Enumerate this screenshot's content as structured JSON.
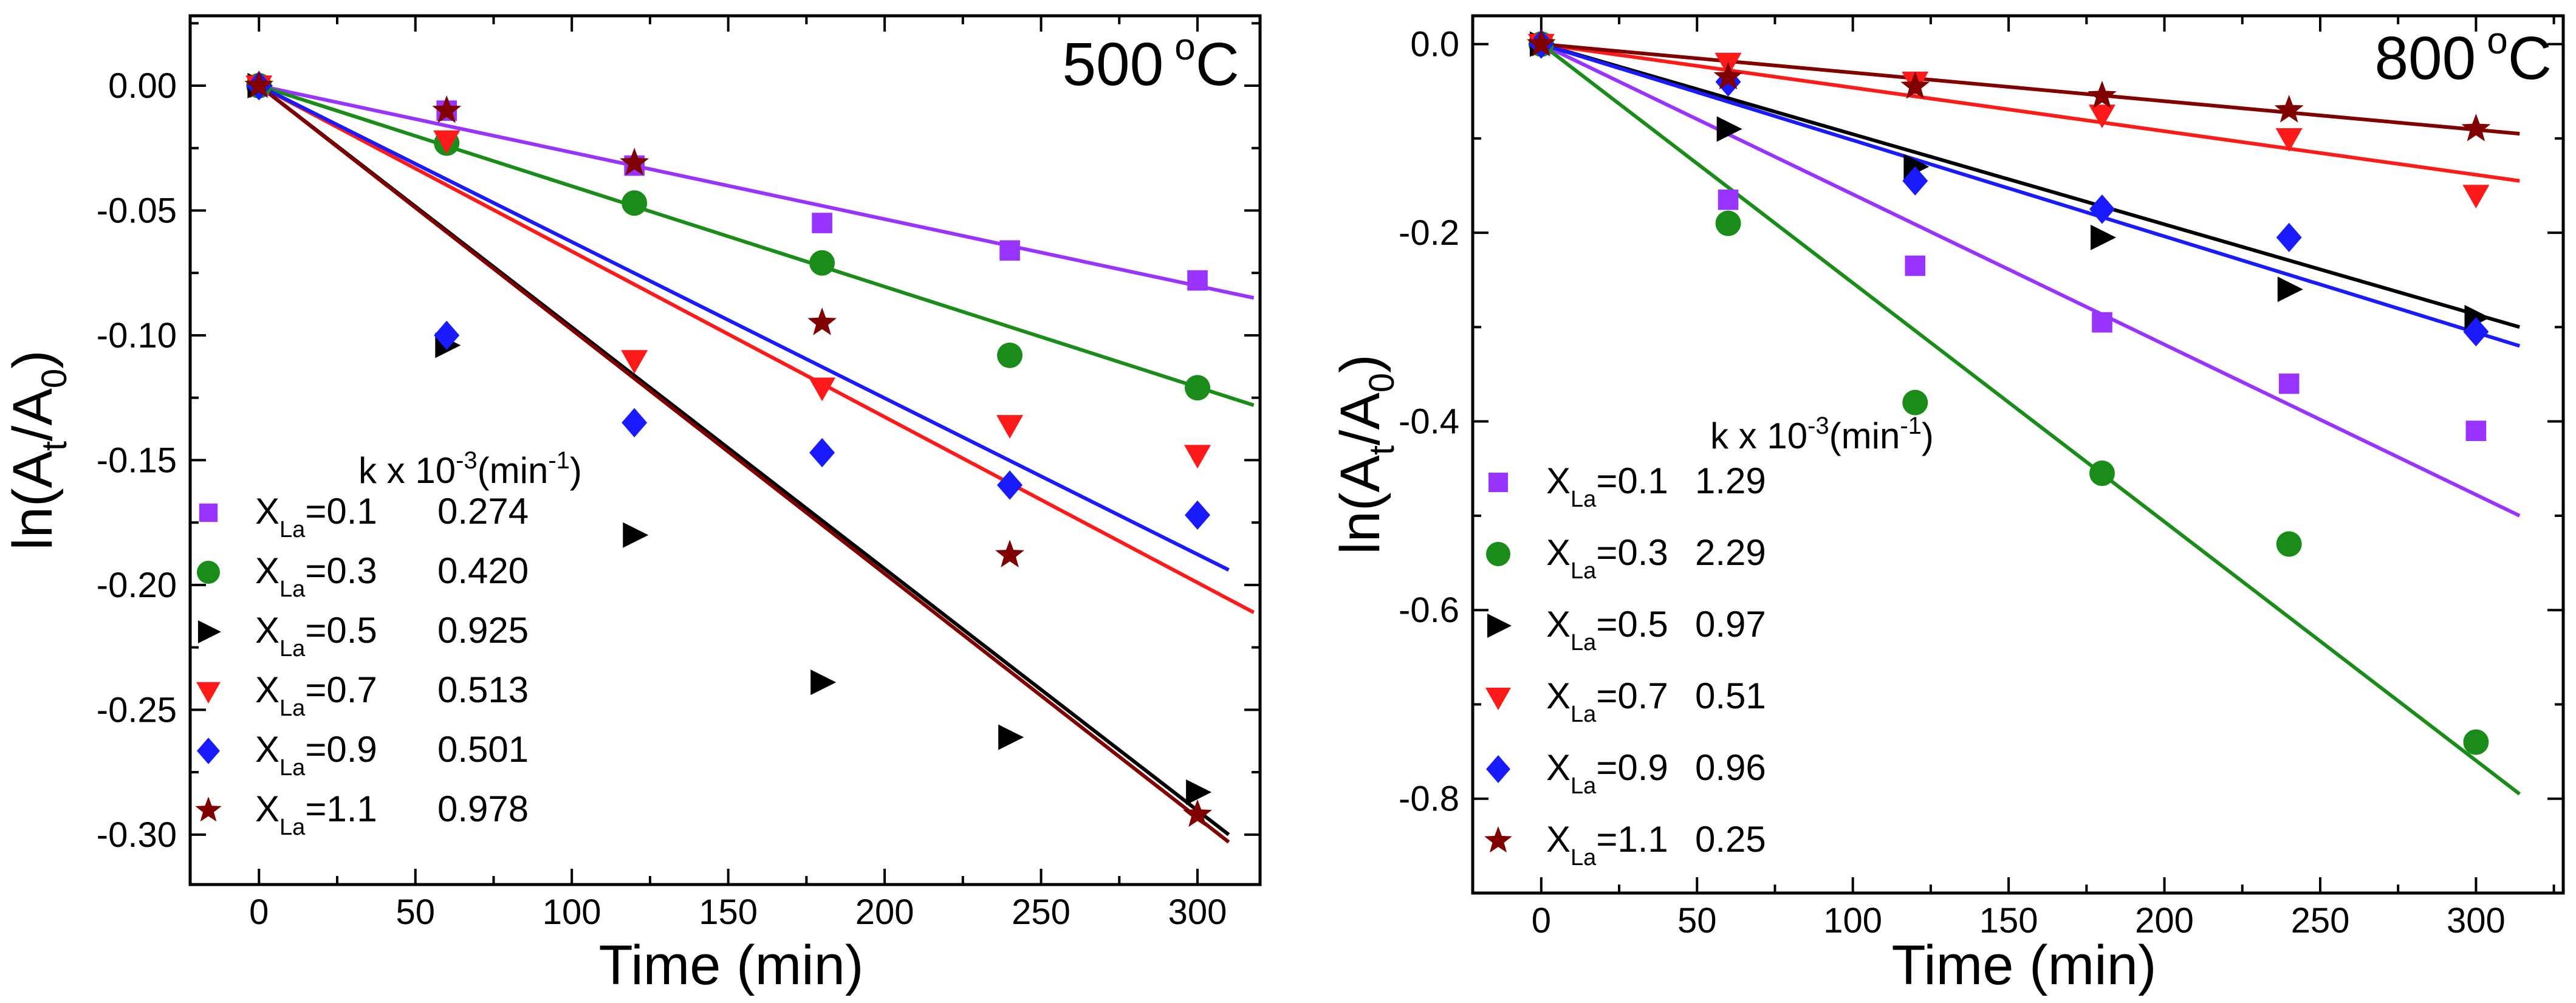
{
  "colors": {
    "purple": "#9933ff",
    "green": "#1a8c1a",
    "black": "#000000",
    "red": "#ff1a1a",
    "blue": "#1a1aff",
    "maroon": "#800000"
  },
  "chart_data": [
    {
      "type": "scatter",
      "panel": "left",
      "temperature_label": "500 °C",
      "temp_value": "500",
      "temp_unit": "C",
      "xlabel": "Time  (min)",
      "ylabel": "ln(At/A0)",
      "xlim": [
        -22,
        320
      ],
      "ylim": [
        -0.32,
        0.028
      ],
      "xticks": [
        "0",
        "50",
        "100",
        "150",
        "200",
        "250",
        "300"
      ],
      "yticks": [
        "0.00",
        "-0.05",
        "-0.10",
        "-0.15",
        "-0.20",
        "-0.25",
        "-0.30"
      ],
      "legend_header": "k x 10-3(min-1)",
      "x": [
        0,
        60,
        120,
        180,
        240,
        300
      ],
      "series": [
        {
          "name": "XLa=0.1",
          "label_main": "X",
          "label_sub": "La",
          "label_value": "=0.1",
          "k": "0.274",
          "color_key": "purple",
          "marker": "square",
          "values": [
            0,
            -0.01,
            -0.032,
            -0.055,
            -0.066,
            -0.078
          ],
          "fit": [
            [
              0,
              0
            ],
            [
              318,
              -0.085
            ]
          ]
        },
        {
          "name": "XLa=0.3",
          "label_main": "X",
          "label_sub": "La",
          "label_value": "=0.3",
          "k": "0.420",
          "color_key": "green",
          "marker": "circle",
          "values": [
            0,
            -0.023,
            -0.047,
            -0.071,
            -0.108,
            -0.121
          ],
          "fit": [
            [
              0,
              0
            ],
            [
              318,
              -0.128
            ]
          ]
        },
        {
          "name": "XLa=0.5",
          "label_main": "X",
          "label_sub": "La",
          "label_value": "=0.5",
          "k": "0.925",
          "color_key": "black",
          "marker": "triangle-right",
          "values": [
            0,
            -0.104,
            -0.18,
            -0.239,
            -0.261,
            -0.283
          ],
          "fit": [
            [
              0,
              0
            ],
            [
              310,
              -0.3
            ]
          ]
        },
        {
          "name": "XLa=0.7",
          "label_main": "X",
          "label_sub": "La",
          "label_value": "=0.7",
          "k": "0.513",
          "color_key": "red",
          "marker": "triangle-down",
          "values": [
            0,
            -0.022,
            -0.11,
            -0.121,
            -0.136,
            -0.148
          ],
          "fit": [
            [
              0,
              0
            ],
            [
              318,
              -0.211
            ]
          ]
        },
        {
          "name": "XLa=0.9",
          "label_main": "X",
          "label_sub": "La",
          "label_value": "=0.9",
          "k": "0.501",
          "color_key": "blue",
          "marker": "diamond",
          "values": [
            0,
            -0.1,
            -0.135,
            -0.147,
            -0.16,
            -0.172
          ],
          "fit": [
            [
              0,
              0
            ],
            [
              310,
              -0.194
            ]
          ]
        },
        {
          "name": "XLa=1.1",
          "label_main": "X",
          "label_sub": "La",
          "label_value": "=1.1",
          "k": "0.978",
          "color_key": "maroon",
          "marker": "star",
          "values": [
            0,
            -0.01,
            -0.031,
            -0.095,
            -0.188,
            -0.292
          ],
          "fit": [
            [
              0,
              0
            ],
            [
              310,
              -0.303
            ]
          ]
        }
      ]
    },
    {
      "type": "scatter",
      "panel": "right",
      "temperature_label": "800 °C",
      "temp_value": "800",
      "temp_unit": "C",
      "xlabel": "Time (min)",
      "ylabel": "ln(At/A0)",
      "xlim": [
        -22,
        328
      ],
      "ylim": [
        -0.9,
        0.03
      ],
      "xticks": [
        "0",
        "50",
        "100",
        "150",
        "200",
        "250",
        "300"
      ],
      "yticks": [
        "0.0",
        "-0.2",
        "-0.4",
        "-0.6",
        "-0.8"
      ],
      "legend_header": "k x 10-3(min-1)",
      "x": [
        0,
        60,
        120,
        180,
        240,
        300
      ],
      "series": [
        {
          "name": "XLa=0.1",
          "label_main": "X",
          "label_sub": "La",
          "label_value": "=0.1",
          "k": "1.29",
          "color_key": "purple",
          "marker": "square",
          "values": [
            0,
            -0.165,
            -0.235,
            -0.295,
            -0.36,
            -0.41
          ],
          "fit": [
            [
              0,
              0
            ],
            [
              314,
              -0.5
            ]
          ]
        },
        {
          "name": "XLa=0.3",
          "label_main": "X",
          "label_sub": "La",
          "label_value": "=0.3",
          "k": "2.29",
          "color_key": "green",
          "marker": "circle",
          "values": [
            0,
            -0.19,
            -0.38,
            -0.455,
            -0.53,
            -0.74
          ],
          "fit": [
            [
              0,
              0
            ],
            [
              314,
              -0.795
            ]
          ]
        },
        {
          "name": "XLa=0.5",
          "label_main": "X",
          "label_sub": "La",
          "label_value": "=0.5",
          "k": "0.97",
          "color_key": "black",
          "marker": "triangle-right",
          "values": [
            0,
            -0.09,
            -0.13,
            -0.205,
            -0.26,
            -0.29
          ],
          "fit": [
            [
              0,
              0
            ],
            [
              314,
              -0.3
            ]
          ]
        },
        {
          "name": "XLa=0.7",
          "label_main": "X",
          "label_sub": "La",
          "label_value": "=0.7",
          "k": "0.51",
          "color_key": "red",
          "marker": "triangle-down",
          "values": [
            0,
            -0.02,
            -0.04,
            -0.075,
            -0.1,
            -0.16
          ],
          "fit": [
            [
              0,
              0
            ],
            [
              314,
              -0.145
            ]
          ]
        },
        {
          "name": "XLa=0.9",
          "label_main": "X",
          "label_sub": "La",
          "label_value": "=0.9",
          "k": "0.96",
          "color_key": "blue",
          "marker": "diamond",
          "values": [
            0,
            -0.04,
            -0.145,
            -0.175,
            -0.205,
            -0.305
          ],
          "fit": [
            [
              0,
              0
            ],
            [
              314,
              -0.32
            ]
          ]
        },
        {
          "name": "XLa=1.1",
          "label_main": "X",
          "label_sub": "La",
          "label_value": "=1.1",
          "k": "0.25",
          "color_key": "maroon",
          "marker": "star",
          "values": [
            0,
            -0.035,
            -0.045,
            -0.055,
            -0.07,
            -0.09
          ],
          "fit": [
            [
              0,
              0
            ],
            [
              314,
              -0.095
            ]
          ]
        }
      ]
    }
  ]
}
